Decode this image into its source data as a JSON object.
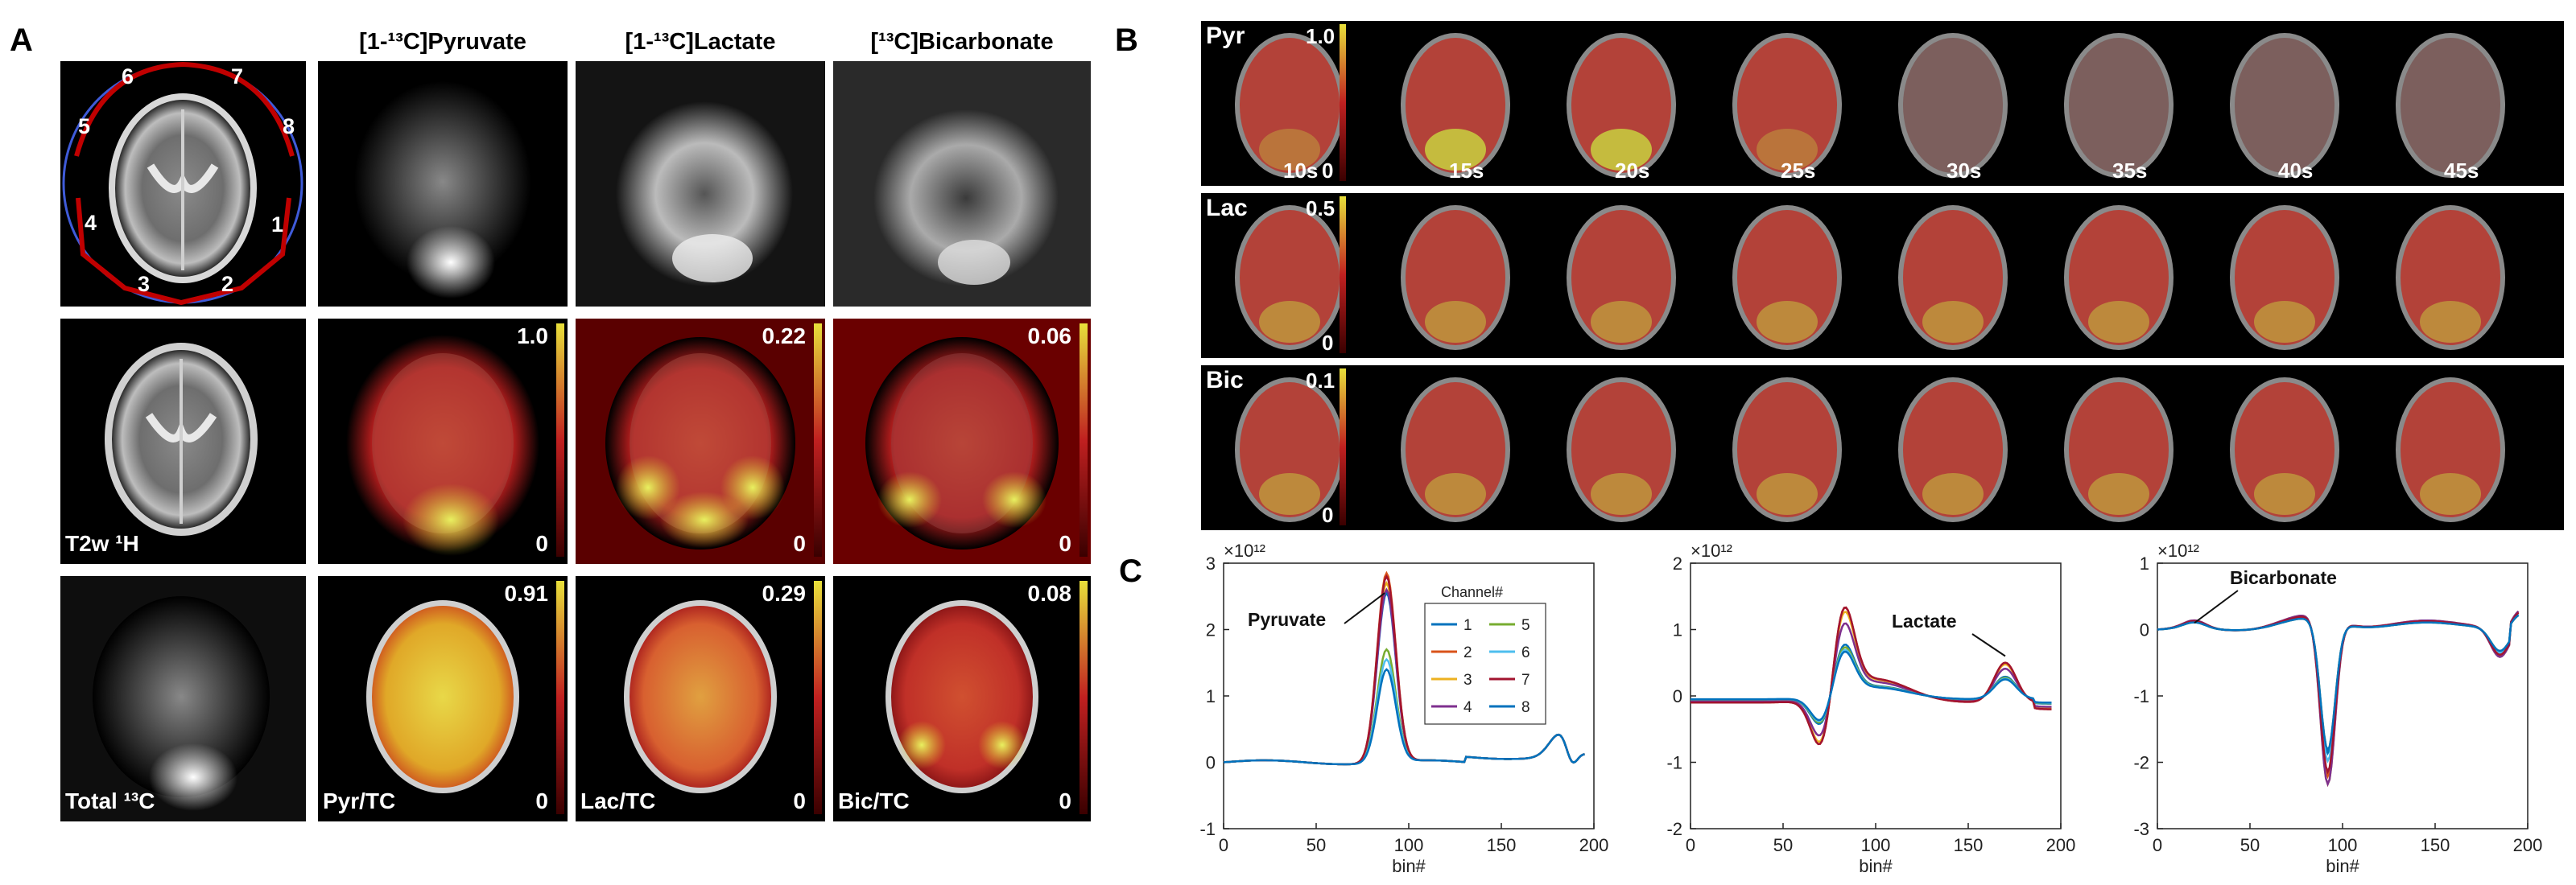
{
  "panel_a": {
    "label": "A",
    "col_titles": [
      "[1-¹³C]Pyruvate",
      "[1-¹³C]Lactate",
      "[¹³C]Bicarbonate"
    ],
    "coil_numbers": [
      "6",
      "7",
      "5",
      "8",
      "4",
      "1",
      "3",
      "2"
    ],
    "row2": {
      "label": "T2w ¹H",
      "max": [
        "1.0",
        "0.22",
        "0.06"
      ],
      "min": "0"
    },
    "row3": {
      "label": "Total ¹³C",
      "max": [
        "0.91",
        "0.29",
        "0.08"
      ],
      "min": "0",
      "ratios": [
        "Pyr/TC",
        "Lac/TC",
        "Bic/TC"
      ]
    }
  },
  "panel_b": {
    "label": "B",
    "rows": [
      {
        "name": "Pyr",
        "max": "1.0",
        "min": "0"
      },
      {
        "name": "Lac",
        "max": "0.5",
        "min": "0"
      },
      {
        "name": "Bic",
        "max": "0.1",
        "min": "0"
      }
    ],
    "times": [
      "10s",
      "15s",
      "20s",
      "25s",
      "30s",
      "35s",
      "40s",
      "45s"
    ]
  },
  "panel_c": {
    "label": "C"
  },
  "chart_data": [
    {
      "type": "line",
      "exponent": "×10¹²",
      "xlabel": "bin#",
      "xlim": [
        0,
        200
      ],
      "ylim": [
        -1,
        3
      ],
      "xticks": [
        0,
        50,
        100,
        150,
        200
      ],
      "yticks": [
        3,
        2,
        1,
        0,
        -1
      ],
      "annotation": "Pyruvate",
      "legend_title": "Channel#",
      "legend": [
        "1",
        "2",
        "3",
        "4",
        "5",
        "6",
        "7",
        "8"
      ],
      "colors": [
        "#0072bd",
        "#d95319",
        "#edb120",
        "#7e2f8e",
        "#77ac30",
        "#4dbeee",
        "#a2142f",
        "#0072bd"
      ],
      "series": [
        {
          "name": "1",
          "peak": 2.55
        },
        {
          "name": "2",
          "peak": 2.85
        },
        {
          "name": "3",
          "peak": 2.7
        },
        {
          "name": "4",
          "peak": 2.6
        },
        {
          "name": "5",
          "peak": 1.7
        },
        {
          "name": "6",
          "peak": 1.55
        },
        {
          "name": "7",
          "peak": 2.8
        },
        {
          "name": "8",
          "peak": 1.4
        }
      ]
    },
    {
      "type": "line",
      "exponent": "×10¹²",
      "xlabel": "bin#",
      "xlim": [
        0,
        200
      ],
      "ylim": [
        -2,
        2
      ],
      "xticks": [
        0,
        50,
        100,
        150,
        200
      ],
      "yticks": [
        2,
        1,
        0,
        -1,
        -2
      ],
      "annotation": "Lactate",
      "series_scales": [
        0.58,
        1.0,
        0.95,
        0.82,
        0.55,
        0.52,
        1.0,
        0.5
      ]
    },
    {
      "type": "line",
      "exponent": "×10¹²",
      "xlabel": "bin#",
      "xlim": [
        0,
        200
      ],
      "ylim": [
        -3,
        1
      ],
      "xticks": [
        0,
        50,
        100,
        150,
        200
      ],
      "yticks": [
        1,
        0,
        -1,
        -2,
        -3
      ],
      "annotation": "Bicarbonate",
      "series_scales": [
        0.8,
        0.95,
        1.0,
        1.0,
        0.78,
        0.85,
        0.92,
        0.78
      ]
    }
  ]
}
